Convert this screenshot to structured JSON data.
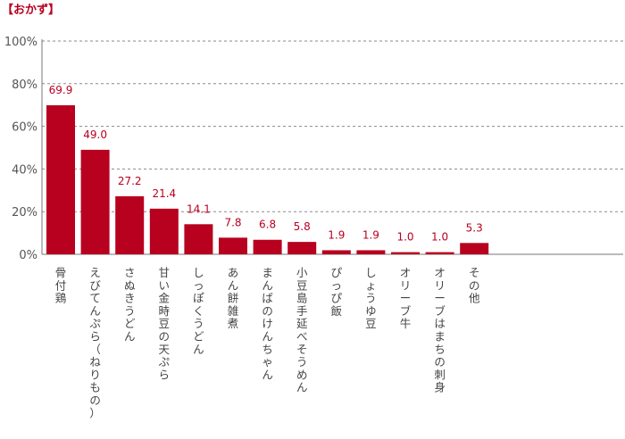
{
  "chart_data": {
    "type": "bar",
    "title": "【おかず】",
    "categories": [
      "骨付鶏",
      "えびてんぷら（ねりもの）",
      "さぬきうどん",
      "甘い金時豆の天ぷら",
      "しっぽくうどん",
      "あん餅雑煮",
      "まんばのけんちゃん",
      "小豆島手延べそうめん",
      "ぴっぴ飯",
      "しょうゆ豆",
      "オリーブ牛",
      "オリーブはまちの刺身",
      "その他"
    ],
    "values": [
      69.9,
      49.0,
      27.2,
      21.4,
      14.1,
      7.8,
      6.8,
      5.8,
      1.9,
      1.9,
      1.0,
      1.0,
      5.3
    ],
    "value_labels": [
      "69.9",
      "49.0",
      "27.2",
      "21.4",
      "14.1",
      "7.8",
      "6.8",
      "5.8",
      "1.9",
      "1.9",
      "1.0",
      "1.0",
      "5.3"
    ],
    "ylim": [
      0,
      100
    ],
    "yticks": [
      0,
      20,
      40,
      60,
      80,
      100
    ],
    "ytick_labels": [
      "0%",
      "20%",
      "40%",
      "60%",
      "80%",
      "100%"
    ],
    "xlabel": "",
    "ylabel": "",
    "grid": "horizontal-dashed",
    "bar_color": "#b8001f",
    "label_color": "#b8001f"
  }
}
